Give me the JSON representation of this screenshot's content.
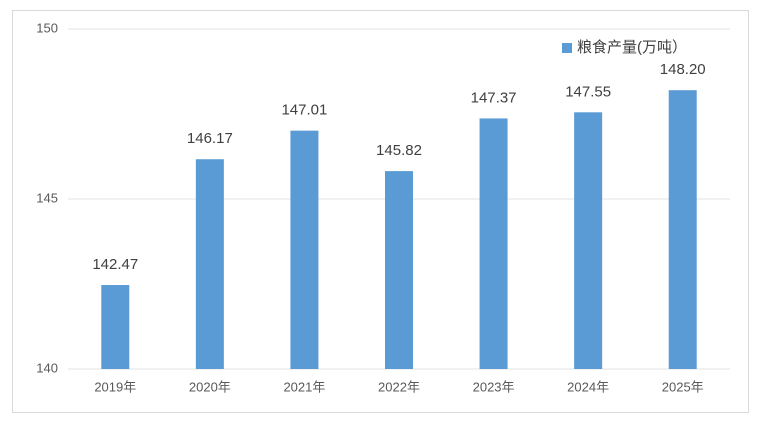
{
  "chart_data": {
    "type": "bar",
    "categories": [
      "2019年",
      "2020年",
      "2021年",
      "2022年",
      "2023年",
      "2024年",
      "2025年"
    ],
    "series": [
      {
        "name": "粮食产量(万吨）",
        "color": "#5b9bd5",
        "values": [
          142.47,
          146.17,
          147.01,
          145.82,
          147.37,
          147.55,
          148.2
        ],
        "value_labels": [
          "142.47",
          "146.17",
          "147.01",
          "145.82",
          "147.37",
          "147.55",
          "148.20"
        ]
      }
    ],
    "ylim": [
      140,
      150
    ],
    "yticks": [
      140,
      145,
      150
    ],
    "grid": true,
    "legend": "top-right"
  }
}
